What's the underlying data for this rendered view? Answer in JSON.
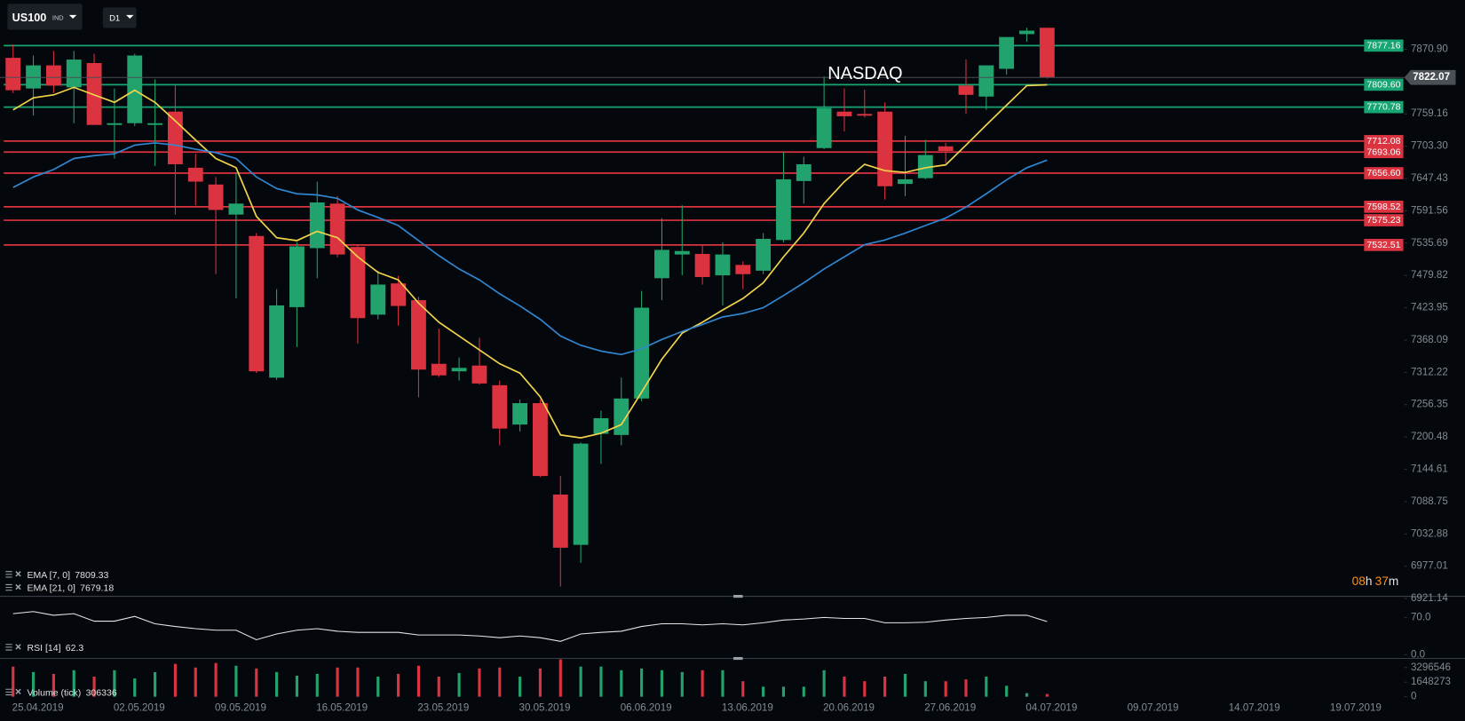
{
  "toolbar": {
    "symbol": "US100",
    "market": "IND",
    "timeframe": "D1"
  },
  "countdown": {
    "hours": "08",
    "hours_unit": "h",
    "minutes": "37",
    "minutes_unit": "m"
  },
  "chart_data": [
    {
      "type": "candlestick",
      "title": "NASDAQ",
      "up_color": "#22a36d",
      "down_color": "#dc3340",
      "categories": [
        "25.04.2019",
        null,
        null,
        null,
        null,
        "02.05.2019",
        null,
        null,
        null,
        null,
        "09.05.2019",
        null,
        null,
        null,
        null,
        "16.05.2019",
        null,
        null,
        null,
        null,
        "23.05.2019",
        null,
        null,
        null,
        null,
        "30.05.2019",
        null,
        null,
        null,
        null,
        "06.06.2019",
        null,
        null,
        null,
        null,
        "13.06.2019",
        null,
        null,
        null,
        null,
        "20.06.2019",
        null,
        null,
        null,
        null,
        "27.06.2019",
        null,
        null,
        null,
        null,
        "04.07.2019",
        null,
        null,
        null,
        null,
        "09.07.2019",
        null,
        null,
        null,
        null,
        "14.07.2019",
        null,
        null,
        null,
        null,
        "19.07.2019"
      ],
      "open": [
        7856,
        7803,
        7843,
        7805,
        7847,
        7740,
        7743,
        7740,
        7763,
        7666,
        7637,
        7585,
        7548,
        7303,
        7425,
        7527,
        7604,
        7529,
        7412,
        7466,
        7437,
        7327,
        7314,
        7324,
        7290,
        7222,
        7259,
        7101,
        7014,
        7206,
        7204,
        7267,
        7475,
        7516,
        7517,
        7480,
        7498,
        7488,
        7541,
        7643,
        7700,
        7763,
        7759,
        7763,
        7638,
        7648,
        7703,
        7808,
        7789,
        7837,
        7897,
        7908,
        null,
        null,
        null,
        null,
        null,
        null,
        null,
        null,
        null,
        null,
        null,
        null,
        null,
        null
      ],
      "high": [
        7879,
        7860,
        7868,
        7868,
        7863,
        7803,
        7863,
        7819,
        7808,
        7690,
        7650,
        7658,
        7553,
        7456,
        7537,
        7642,
        7617,
        7533,
        7488,
        7479,
        7443,
        7388,
        7338,
        7372,
        7298,
        7265,
        7265,
        7133,
        7191,
        7246,
        7303,
        7453,
        7579,
        7601,
        7533,
        7537,
        7504,
        7553,
        7693,
        7685,
        7824,
        7803,
        7801,
        7779,
        7721,
        7714,
        7709,
        7853,
        7843,
        7892,
        7908,
        7908,
        null,
        null,
        null,
        null,
        null,
        null,
        null,
        null,
        null,
        null,
        null,
        null,
        null,
        null
      ],
      "low": [
        7795,
        7756,
        7795,
        7743,
        7740,
        7682,
        7738,
        7669,
        7585,
        7601,
        7482,
        7440,
        7311,
        7299,
        7356,
        7475,
        7511,
        7362,
        7404,
        7393,
        7269,
        7304,
        7298,
        7291,
        7186,
        7210,
        7131,
        6942,
        6983,
        7154,
        7186,
        7262,
        7437,
        7480,
        7464,
        7428,
        7456,
        7482,
        7537,
        7604,
        7698,
        7729,
        7753,
        7611,
        7617,
        7646,
        7674,
        7759,
        7766,
        7827,
        7884,
        7820,
        null,
        null,
        null,
        null,
        null,
        null,
        null,
        null,
        null,
        null,
        null,
        null,
        null,
        null
      ],
      "close": [
        7800,
        7843,
        7808,
        7853,
        7740,
        7743,
        7860,
        7743,
        7672,
        7642,
        7593,
        7604,
        7314,
        7428,
        7530,
        7606,
        7516,
        7406,
        7464,
        7427,
        7317,
        7307,
        7320,
        7293,
        7215,
        7259,
        7133,
        7009,
        7189,
        7233,
        7267,
        7424,
        7524,
        7522,
        7477,
        7516,
        7482,
        7543,
        7646,
        7672,
        7769,
        7755,
        7756,
        7634,
        7646,
        7688,
        7695,
        7792,
        7843,
        7892,
        7903,
        7822.07,
        null,
        null,
        null,
        null,
        null,
        null,
        null,
        null,
        null,
        null,
        null,
        null,
        null,
        null
      ],
      "series": [
        {
          "name": "EMA [7, 0]",
          "color": "#f2d44b",
          "values": [
            7766,
            7787,
            7792,
            7805,
            7792,
            7779,
            7800,
            7779,
            7747,
            7714,
            7682,
            7666,
            7582,
            7545,
            7540,
            7556,
            7545,
            7512,
            7485,
            7472,
            7432,
            7399,
            7375,
            7351,
            7327,
            7311,
            7270,
            7204,
            7199,
            7207,
            7222,
            7278,
            7335,
            7380,
            7399,
            7420,
            7440,
            7467,
            7512,
            7553,
            7604,
            7642,
            7672,
            7661,
            7658,
            7666,
            7671,
            7705,
            7740,
            7774,
            7808,
            7809.33,
            null,
            null,
            null,
            null,
            null,
            null,
            null,
            null,
            null,
            null,
            null,
            null,
            null,
            null
          ]
        },
        {
          "name": "EMA [21, 0]",
          "color": "#2f86d1",
          "values": [
            7632,
            7650,
            7663,
            7682,
            7687,
            7690,
            7705,
            7709,
            7705,
            7698,
            7692,
            7682,
            7650,
            7630,
            7621,
            7619,
            7613,
            7593,
            7580,
            7566,
            7540,
            7514,
            7491,
            7472,
            7448,
            7427,
            7404,
            7375,
            7359,
            7349,
            7343,
            7353,
            7369,
            7383,
            7395,
            7408,
            7414,
            7424,
            7445,
            7467,
            7491,
            7512,
            7533,
            7541,
            7553,
            7566,
            7579,
            7598,
            7621,
            7645,
            7666,
            7679.18,
            null,
            null,
            null,
            null,
            null,
            null,
            null,
            null,
            null,
            null,
            null,
            null,
            null,
            null
          ]
        }
      ],
      "levels": [
        {
          "value": 7877.16,
          "color": "#17a673"
        },
        {
          "value": 7809.6,
          "label": "7809.60",
          "color": "#17a673"
        },
        {
          "value": 7770.78,
          "color": "#17a673"
        },
        {
          "value": 7712.08,
          "color": "#dc3340"
        },
        {
          "value": 7693.06,
          "color": "#dc3340"
        },
        {
          "value": 7656.6,
          "label": "7656.60",
          "color": "#dc3340"
        },
        {
          "value": 7598.52,
          "color": "#dc3340"
        },
        {
          "value": 7575.23,
          "color": "#dc3340"
        },
        {
          "value": 7532.51,
          "color": "#dc3340"
        }
      ],
      "ylim": [
        6920,
        7956
      ],
      "yticks": [
        {
          "value": 7870.9,
          "label": "7870.90"
        },
        7759.16,
        {
          "value": 7703.3,
          "label": "7703.30"
        },
        7647.43,
        7591.56,
        7535.69,
        7479.82,
        7423.95,
        7368.09,
        7312.22,
        7256.35,
        7200.48,
        7144.61,
        7088.75,
        7032.88,
        6977.01,
        6921.14
      ]
    },
    {
      "type": "line",
      "series": [
        {
          "name": "RSI [14]",
          "color": "#e6e6e6",
          "values": [
            77,
            81,
            74,
            77,
            63,
            63,
            72,
            58,
            53,
            49,
            46,
            46,
            28,
            39,
            46,
            49,
            44,
            42,
            42,
            42,
            37,
            37,
            37,
            35,
            32,
            35,
            32,
            25,
            39,
            42,
            44,
            53,
            58,
            58,
            56,
            58,
            56,
            60,
            65,
            67,
            70,
            68,
            68,
            60,
            60,
            61,
            65,
            68,
            70,
            74,
            74,
            62.3,
            null,
            null,
            null,
            null,
            null,
            null,
            null,
            null,
            null,
            null,
            null,
            null,
            null,
            null
          ]
        }
      ],
      "ylim": [
        0,
        107
      ],
      "yticks": [
        {
          "value": 70,
          "label": "70.0"
        },
        {
          "value": 0,
          "label": "0.0"
        }
      ]
    },
    {
      "type": "bar",
      "series": [
        {
          "name": "Volume (tick)",
          "values": [
            3400000,
            2780000,
            2580000,
            2990000,
            2270000,
            2990000,
            2060000,
            2780000,
            3710000,
            3300000,
            3810000,
            3500000,
            3190000,
            2780000,
            2370000,
            2580000,
            3300000,
            3300000,
            2270000,
            2580000,
            3500000,
            2270000,
            2680000,
            3190000,
            3300000,
            2270000,
            3190000,
            4220000,
            3400000,
            3400000,
            2990000,
            3190000,
            2990000,
            2780000,
            2990000,
            2990000,
            1750000,
            1130000,
            1130000,
            1130000,
            2990000,
            2270000,
            1750000,
            2270000,
            2580000,
            1750000,
            1750000,
            1960000,
            2270000,
            1240000,
            400000,
            306336,
            null,
            null,
            null,
            null,
            null,
            null,
            null,
            null,
            null,
            null,
            null,
            null,
            null,
            null
          ]
        }
      ],
      "ylim": [
        0,
        4430000
      ],
      "yticks": [
        3296546,
        1648273,
        0
      ]
    }
  ]
}
